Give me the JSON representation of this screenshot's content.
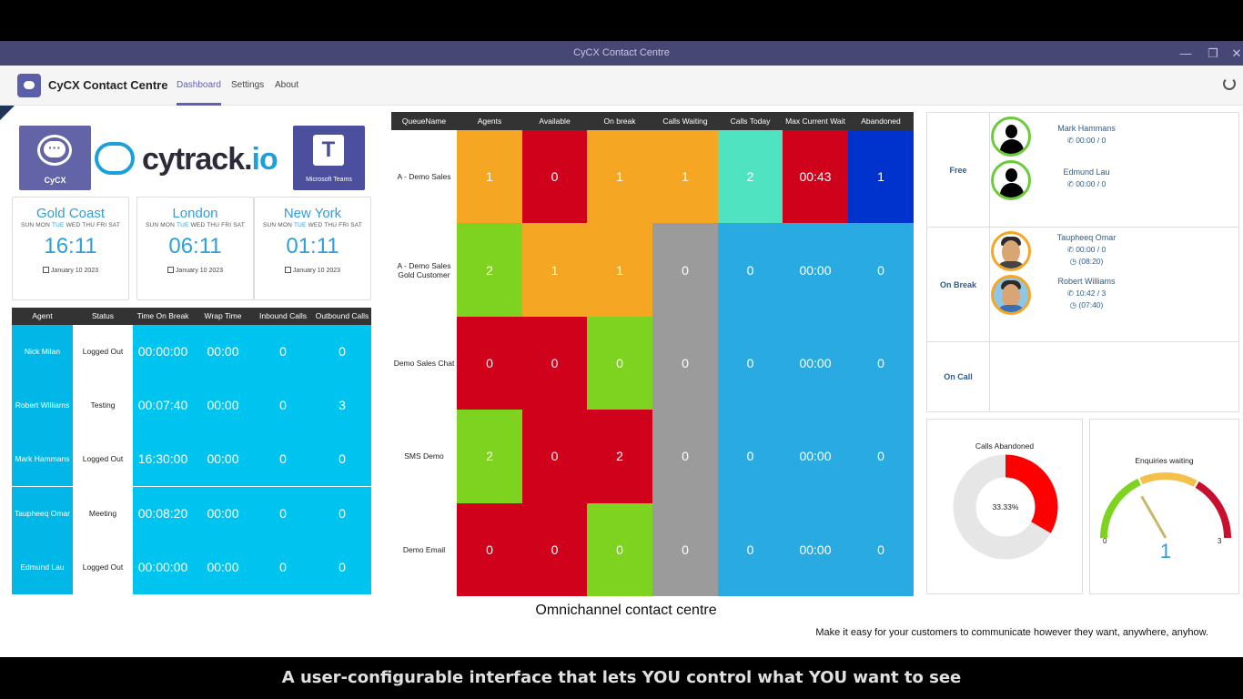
{
  "window": {
    "title": "CyCX Contact Centre"
  },
  "app": {
    "name": "CyCX Contact Centre",
    "tabs": [
      {
        "label": "Dashboard",
        "active": true
      },
      {
        "label": "Settings",
        "active": false
      },
      {
        "label": "About",
        "active": false
      }
    ]
  },
  "logos": {
    "cycx_label": "CyCX",
    "cytrack_main": "cytrack.",
    "cytrack_io": "io",
    "teams_label": "Microsoft Teams",
    "teams_letter": "T"
  },
  "clocks": [
    {
      "city": "Gold Coast",
      "time": "16:11",
      "date": "January 10 2023"
    },
    {
      "city": "London",
      "time": "06:11",
      "date": "January 10 2023"
    },
    {
      "city": "New York",
      "time": "01:11",
      "date": "January 10 2023"
    }
  ],
  "weekdays": {
    "before": "SUN MON ",
    "today": "TUE",
    "after": " WED THU FRI SAT"
  },
  "agent_table": {
    "headers": [
      "Agent",
      "Status",
      "Time On Break",
      "Wrap Time",
      "Inbound Calls",
      "Outbound Calls"
    ],
    "rows": [
      {
        "agent": "Nick Milan",
        "status": "Logged Out",
        "break": "00:00:00",
        "wrap": "00:00",
        "inbound": "0",
        "outbound": "0"
      },
      {
        "agent": "Robert Williams",
        "status": "Testing",
        "break": "00:07:40",
        "wrap": "00:00",
        "inbound": "0",
        "outbound": "3"
      },
      {
        "agent": "Mark Hammans",
        "status": "Logged Out",
        "break": "16:30:00",
        "wrap": "00:00",
        "inbound": "0",
        "outbound": "0"
      },
      {
        "agent": "Taupheeq Omar",
        "status": "Meeting",
        "break": "00:08:20",
        "wrap": "00:00",
        "inbound": "0",
        "outbound": "0"
      },
      {
        "agent": "Edmund Lau",
        "status": "Logged Out",
        "break": "00:00:00",
        "wrap": "00:00",
        "inbound": "0",
        "outbound": "0"
      }
    ]
  },
  "queue_table": {
    "headers": [
      "QueueName",
      "Agents",
      "Available",
      "On break",
      "Calls Waiting",
      "Calls Today",
      "Max Current Wait",
      "Abandoned"
    ],
    "rows": [
      {
        "name": "A - Demo Sales",
        "cells": [
          {
            "v": "1",
            "c": "orange"
          },
          {
            "v": "0",
            "c": "red"
          },
          {
            "v": "1",
            "c": "orange"
          },
          {
            "v": "1",
            "c": "orange"
          },
          {
            "v": "2",
            "c": "teal"
          },
          {
            "v": "00:43",
            "c": "red"
          },
          {
            "v": "1",
            "c": "blue"
          }
        ]
      },
      {
        "name": "A - Demo Sales Gold Customer",
        "cells": [
          {
            "v": "2",
            "c": "green"
          },
          {
            "v": "1",
            "c": "orange"
          },
          {
            "v": "1",
            "c": "orange"
          },
          {
            "v": "0",
            "c": "grey"
          },
          {
            "v": "0",
            "c": "sky"
          },
          {
            "v": "00:00",
            "c": "sky"
          },
          {
            "v": "0",
            "c": "sky"
          }
        ]
      },
      {
        "name": "Demo Sales Chat",
        "cells": [
          {
            "v": "0",
            "c": "red"
          },
          {
            "v": "0",
            "c": "red"
          },
          {
            "v": "0",
            "c": "green"
          },
          {
            "v": "0",
            "c": "grey"
          },
          {
            "v": "0",
            "c": "sky"
          },
          {
            "v": "00:00",
            "c": "sky"
          },
          {
            "v": "0",
            "c": "sky"
          }
        ]
      },
      {
        "name": "SMS Demo",
        "cells": [
          {
            "v": "2",
            "c": "green"
          },
          {
            "v": "0",
            "c": "red"
          },
          {
            "v": "2",
            "c": "red"
          },
          {
            "v": "0",
            "c": "grey"
          },
          {
            "v": "0",
            "c": "sky"
          },
          {
            "v": "00:00",
            "c": "sky"
          },
          {
            "v": "0",
            "c": "sky"
          }
        ]
      },
      {
        "name": "Demo Email",
        "cells": [
          {
            "v": "0",
            "c": "red"
          },
          {
            "v": "0",
            "c": "red"
          },
          {
            "v": "0",
            "c": "green"
          },
          {
            "v": "0",
            "c": "grey"
          },
          {
            "v": "0",
            "c": "sky"
          },
          {
            "v": "00:00",
            "c": "sky"
          },
          {
            "v": "0",
            "c": "sky"
          }
        ]
      }
    ]
  },
  "presence": {
    "free_label": "Free",
    "break_label": "On Break",
    "call_label": "On Call",
    "free": [
      {
        "name": "Mark Hammans",
        "stats": "00:00  /  0"
      },
      {
        "name": "Edmund Lau",
        "stats": "00:00  /  0"
      }
    ],
    "on_break": [
      {
        "name": "Taupheeq Omar",
        "stats": "00:00  /  0",
        "break": "(08:20)"
      },
      {
        "name": "Robert Williams",
        "stats": "10:42  /  3",
        "break": "(07:40)"
      }
    ]
  },
  "calls_abandoned": {
    "title": "Calls Abandoned",
    "percent_label": "33.33%",
    "fraction": 0.3333,
    "color_filled": "#ff0000",
    "color_empty": "#e6e6e6"
  },
  "enquiries_waiting": {
    "title": "Enquiries waiting",
    "value": "1",
    "min": "0",
    "max": "3",
    "value_num": 1,
    "max_num": 3
  },
  "footer": {
    "headline": "Omnichannel contact centre",
    "tagline": "Make it easy for your customers to communicate however they want, anywhere, anyhow."
  },
  "caption": "A user-configurable interface that lets YOU control what YOU want to see",
  "colors": {
    "teams_purple": "#464775",
    "accent": "#5b5fc7",
    "clock_blue": "#2e9fd8",
    "orange": "#f5a623",
    "red": "#d0021b",
    "green": "#7ed321",
    "grey": "#9b9b9b",
    "teal": "#50e3c2",
    "blue": "#0033cc",
    "sky": "#29abe2"
  }
}
